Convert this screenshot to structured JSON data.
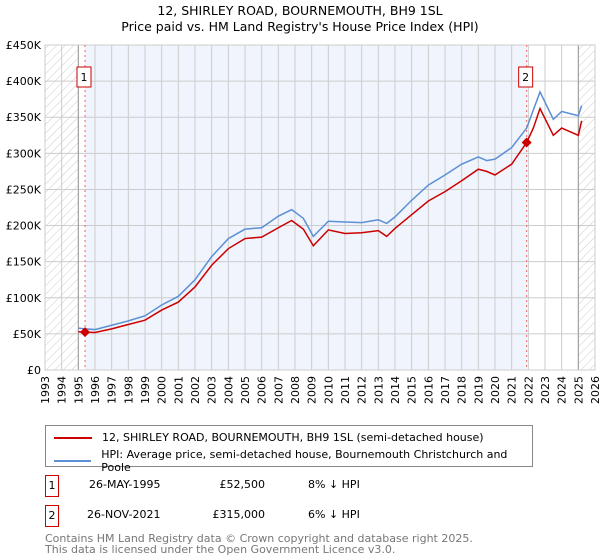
{
  "chart_data": {
    "type": "line",
    "title": "12, SHIRLEY ROAD, BOURNEMOUTH, BH9 1SL",
    "subtitle": "Price paid vs. HM Land Registry's House Price Index (HPI)",
    "xlim": [
      1993,
      2026
    ],
    "ylim": [
      0,
      450000
    ],
    "x_ticks": [
      "1993",
      "1994",
      "1995",
      "1996",
      "1997",
      "1998",
      "1999",
      "2000",
      "2001",
      "2002",
      "2003",
      "2004",
      "2005",
      "2006",
      "2007",
      "2008",
      "2009",
      "2010",
      "2011",
      "2012",
      "2013",
      "2014",
      "2015",
      "2016",
      "2017",
      "2018",
      "2019",
      "2020",
      "2021",
      "2022",
      "2023",
      "2024",
      "2025",
      "2026"
    ],
    "y_ticks": [
      {
        "v": 0,
        "label": "£0"
      },
      {
        "v": 50000,
        "label": "£50K"
      },
      {
        "v": 100000,
        "label": "£100K"
      },
      {
        "v": 150000,
        "label": "£150K"
      },
      {
        "v": 200000,
        "label": "£200K"
      },
      {
        "v": 250000,
        "label": "£250K"
      },
      {
        "v": 300000,
        "label": "£300K"
      },
      {
        "v": 350000,
        "label": "£350K"
      },
      {
        "v": 400000,
        "label": "£400K"
      },
      {
        "v": 450000,
        "label": "£450K"
      }
    ],
    "grid": true,
    "series": [
      {
        "name": "12, SHIRLEY ROAD, BOURNEMOUTH, BH9 1SL (semi-detached house)",
        "color": "#cc0000",
        "x": [
          1995.0,
          1995.4,
          1996,
          1997,
          1998,
          1999,
          2000,
          2001,
          2002,
          2003,
          2004,
          2005,
          2006,
          2007,
          2007.8,
          2008.5,
          2009.1,
          2010,
          2011,
          2012,
          2013,
          2013.5,
          2014,
          2015,
          2016,
          2017,
          2018,
          2019,
          2019.5,
          2020,
          2021,
          2021.9,
          2022.3,
          2022.7,
          2023.5,
          2024,
          2024.5,
          2025,
          2025.2
        ],
        "y": [
          53000,
          52500,
          52000,
          57000,
          63000,
          69000,
          83000,
          94000,
          115000,
          145000,
          168000,
          182000,
          184000,
          197000,
          207000,
          195000,
          172000,
          194000,
          189000,
          190000,
          193000,
          185000,
          196000,
          215000,
          234000,
          247000,
          262000,
          278000,
          275000,
          270000,
          285000,
          315000,
          335000,
          362000,
          325000,
          335000,
          330000,
          325000,
          345000
        ]
      },
      {
        "name": "HPI: Average price, semi-detached house, Bournemouth Christchurch and Poole",
        "color": "#5b8fd6",
        "x": [
          1995.0,
          1995.4,
          1996,
          1997,
          1998,
          1999,
          2000,
          2001,
          2002,
          2003,
          2004,
          2005,
          2006,
          2007,
          2007.8,
          2008.5,
          2009.1,
          2010,
          2011,
          2012,
          2013,
          2013.5,
          2014,
          2015,
          2016,
          2017,
          2018,
          2019,
          2019.5,
          2020,
          2021,
          2021.9,
          2022.3,
          2022.7,
          2023.5,
          2024,
          2024.5,
          2025,
          2025.2
        ],
        "y": [
          58000,
          57000,
          56000,
          62000,
          68000,
          75000,
          90000,
          102000,
          125000,
          157000,
          182000,
          195000,
          197000,
          213000,
          222000,
          210000,
          185000,
          206000,
          205000,
          204000,
          208000,
          203000,
          212000,
          235000,
          256000,
          270000,
          285000,
          295000,
          290000,
          292000,
          308000,
          335000,
          360000,
          385000,
          347000,
          358000,
          355000,
          352000,
          366000
        ]
      }
    ],
    "sales": [
      {
        "label": "1",
        "x": 1995.4,
        "price": 52500
      },
      {
        "label": "2",
        "x": 2021.9,
        "price": 315000
      }
    ],
    "hatch_before": 1995.0,
    "hatch_after": 2025.0
  },
  "legend": {
    "items": [
      "12, SHIRLEY ROAD, BOURNEMOUTH, BH9 1SL (semi-detached house)",
      "HPI: Average price, semi-detached house, Bournemouth Christchurch and Poole"
    ]
  },
  "transactions": [
    {
      "num": "1",
      "date": "26-MAY-1995",
      "price": "£52,500",
      "hpi": "8% ↓ HPI"
    },
    {
      "num": "2",
      "date": "26-NOV-2021",
      "price": "£315,000",
      "hpi": "6% ↓ HPI"
    }
  ],
  "footer": {
    "line1": "Contains HM Land Registry data © Crown copyright and database right 2025.",
    "line2": "This data is licensed under the Open Government Licence v3.0."
  }
}
